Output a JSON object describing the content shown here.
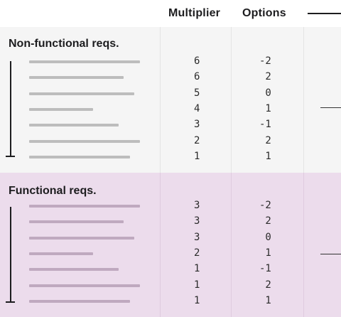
{
  "header": {
    "col_multiplier": "Multiplier",
    "col_options": "Options"
  },
  "sections": [
    {
      "title": "Non-functional reqs.",
      "rows": [
        {
          "bar_fraction": 1.0,
          "multiplier": "6",
          "option": "-2"
        },
        {
          "bar_fraction": 0.85,
          "multiplier": "6",
          "option": " 2"
        },
        {
          "bar_fraction": 0.95,
          "multiplier": "5",
          "option": " 0"
        },
        {
          "bar_fraction": 0.58,
          "multiplier": "4",
          "option": " 1"
        },
        {
          "bar_fraction": 0.81,
          "multiplier": "3",
          "option": "-1"
        },
        {
          "bar_fraction": 1.0,
          "multiplier": "2",
          "option": " 2"
        },
        {
          "bar_fraction": 0.91,
          "multiplier": "1",
          "option": " 1"
        }
      ]
    },
    {
      "title": "Functional reqs.",
      "rows": [
        {
          "bar_fraction": 1.0,
          "multiplier": "3",
          "option": "-2"
        },
        {
          "bar_fraction": 0.85,
          "multiplier": "3",
          "option": " 2"
        },
        {
          "bar_fraction": 0.95,
          "multiplier": "3",
          "option": " 0"
        },
        {
          "bar_fraction": 0.58,
          "multiplier": "2",
          "option": " 1"
        },
        {
          "bar_fraction": 0.81,
          "multiplier": "1",
          "option": "-1"
        },
        {
          "bar_fraction": 1.0,
          "multiplier": "1",
          "option": " 2"
        },
        {
          "bar_fraction": 0.91,
          "multiplier": "1",
          "option": " 1"
        }
      ]
    }
  ],
  "colors": {
    "nonfunctional_bg": "#f5f5f5",
    "functional_bg": "#ecdcec",
    "nonfunctional_bar": "#bdbdbd",
    "functional_bar": "#bfa9bf",
    "text": "#1d1d1f"
  }
}
